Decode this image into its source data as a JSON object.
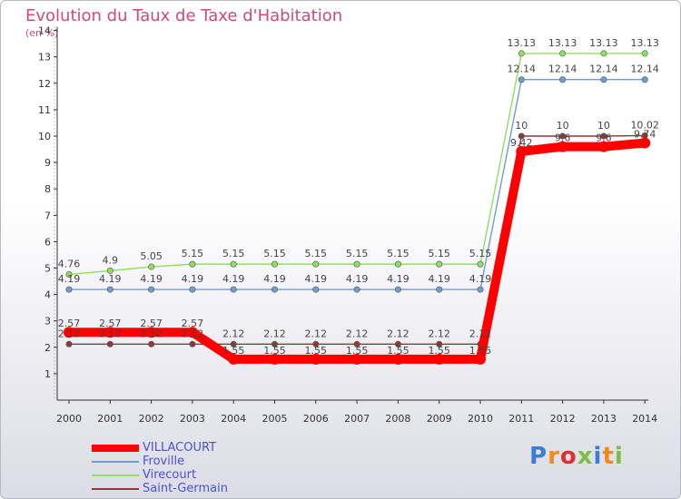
{
  "header": {
    "title": "Evolution du Taux de Taxe d'Habitation",
    "unit": "(en %)"
  },
  "logo": {
    "text": "Proxiti"
  },
  "chart_data": {
    "type": "line",
    "title": "Evolution du Taux de Taxe d'Habitation",
    "ylabel": "(en %)",
    "xlabel": "",
    "ylim": [
      0,
      14
    ],
    "yticks": [
      1,
      2,
      3,
      4,
      5,
      6,
      7,
      8,
      9,
      10,
      11,
      12,
      13,
      14
    ],
    "grid": false,
    "legend_position": "bottom-left",
    "categories": [
      "2000",
      "2001",
      "2002",
      "2003",
      "2004",
      "2005",
      "2006",
      "2007",
      "2008",
      "2009",
      "2010",
      "2011",
      "2012",
      "2013",
      "2014"
    ],
    "series": [
      {
        "name": "VILLACOURT",
        "color": "#ff0000",
        "values": [
          2.57,
          2.57,
          2.57,
          2.57,
          1.55,
          1.55,
          1.55,
          1.55,
          1.55,
          1.55,
          1.55,
          9.42,
          9.6,
          9.6,
          9.74
        ],
        "labels": [
          "2.57",
          "2.57",
          "2.57",
          "2.57",
          "1.55",
          "1.55",
          "1.55",
          "1.55",
          "1.55",
          "1.55",
          "1.55",
          "9.42",
          "9.6",
          "9.6",
          "9.74"
        ]
      },
      {
        "name": "Froville",
        "color": "#6a9fd6",
        "values": [
          4.19,
          4.19,
          4.19,
          4.19,
          4.19,
          4.19,
          4.19,
          4.19,
          4.19,
          4.19,
          4.19,
          12.14,
          12.14,
          12.14,
          12.14
        ],
        "labels": [
          "4.19",
          "4.19",
          "4.19",
          "4.19",
          "4.19",
          "4.19",
          "4.19",
          "4.19",
          "4.19",
          "4.19",
          "4.19",
          "12.14",
          "12.14",
          "12.14",
          "12.14"
        ]
      },
      {
        "name": "Virecourt",
        "color": "#90e060",
        "values": [
          4.76,
          4.9,
          5.05,
          5.15,
          5.15,
          5.15,
          5.15,
          5.15,
          5.15,
          5.15,
          5.15,
          13.13,
          13.13,
          13.13,
          13.13
        ],
        "labels": [
          "4.76",
          "4.9",
          "5.05",
          "5.15",
          "5.15",
          "5.15",
          "5.15",
          "5.15",
          "5.15",
          "5.15",
          "5.15",
          "13.13",
          "13.13",
          "13.13",
          "13.13"
        ]
      },
      {
        "name": "Saint-Germain",
        "color": "#8b3a3a",
        "values": [
          2.12,
          2.12,
          2.12,
          2.12,
          2.12,
          2.12,
          2.12,
          2.12,
          2.12,
          2.12,
          2.12,
          10,
          10,
          10,
          10.02
        ],
        "labels": [
          "2.12",
          "2.12",
          "2.12",
          "2.12",
          "2.12",
          "2.12",
          "2.12",
          "2.12",
          "2.12",
          "2.12",
          "2.12",
          "10",
          "10",
          "10",
          "10.02"
        ]
      }
    ]
  }
}
